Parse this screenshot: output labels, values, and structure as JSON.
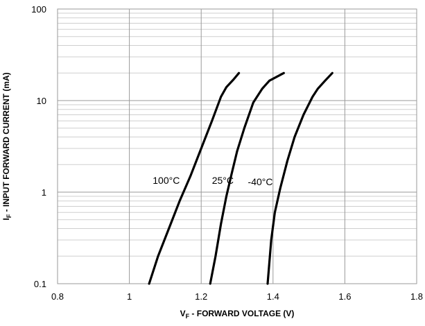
{
  "chart_data": {
    "type": "line",
    "title": "",
    "xlabel": {
      "symbol": "V",
      "subscript": "F",
      "text": " - FORWARD VOLTAGE (V)"
    },
    "ylabel": {
      "symbol": "I",
      "subscript": "F",
      "text": " - INPUT FORWARD CURRENT (mA)"
    },
    "x_scale": "linear",
    "y_scale": "log",
    "xlim": [
      0.8,
      1.8
    ],
    "ylim": [
      0.1,
      100
    ],
    "x_ticks": [
      0.8,
      1.0,
      1.2,
      1.4,
      1.6,
      1.8
    ],
    "x_tick_labels": [
      "0.8",
      "1",
      "1.2",
      "1.4",
      "1.6",
      "1.8"
    ],
    "y_ticks": [
      0.1,
      1,
      10,
      100
    ],
    "y_tick_labels": [
      "0.1",
      "1",
      "10",
      "100"
    ],
    "grid": true,
    "series": [
      {
        "name": "100°C",
        "color": "#000000",
        "points": [
          [
            1.055,
            0.1
          ],
          [
            1.08,
            0.2
          ],
          [
            1.11,
            0.4
          ],
          [
            1.14,
            0.8
          ],
          [
            1.17,
            1.5
          ],
          [
            1.2,
            3
          ],
          [
            1.23,
            6
          ],
          [
            1.255,
            11
          ],
          [
            1.27,
            14
          ],
          [
            1.29,
            17
          ],
          [
            1.305,
            20
          ]
        ]
      },
      {
        "name": "25°C",
        "color": "#000000",
        "points": [
          [
            1.225,
            0.1
          ],
          [
            1.24,
            0.2
          ],
          [
            1.255,
            0.45
          ],
          [
            1.27,
            0.9
          ],
          [
            1.285,
            1.6
          ],
          [
            1.3,
            2.8
          ],
          [
            1.32,
            5
          ],
          [
            1.345,
            9.5
          ],
          [
            1.37,
            13.5
          ],
          [
            1.39,
            16.5
          ],
          [
            1.43,
            20
          ]
        ]
      },
      {
        "name": "-40°C",
        "color": "#000000",
        "points": [
          [
            1.385,
            0.1
          ],
          [
            1.395,
            0.3
          ],
          [
            1.405,
            0.6
          ],
          [
            1.42,
            1.1
          ],
          [
            1.44,
            2.2
          ],
          [
            1.46,
            4
          ],
          [
            1.485,
            7
          ],
          [
            1.51,
            11
          ],
          [
            1.525,
            13.5
          ],
          [
            1.545,
            16.5
          ],
          [
            1.565,
            20
          ]
        ]
      }
    ],
    "annotations": [
      {
        "text": "100°C",
        "x": 1.065,
        "y": 1.35
      },
      {
        "text": "25°C",
        "x": 1.23,
        "y": 1.35
      },
      {
        "text": "-40°C",
        "x": 1.33,
        "y": 1.3
      }
    ]
  }
}
